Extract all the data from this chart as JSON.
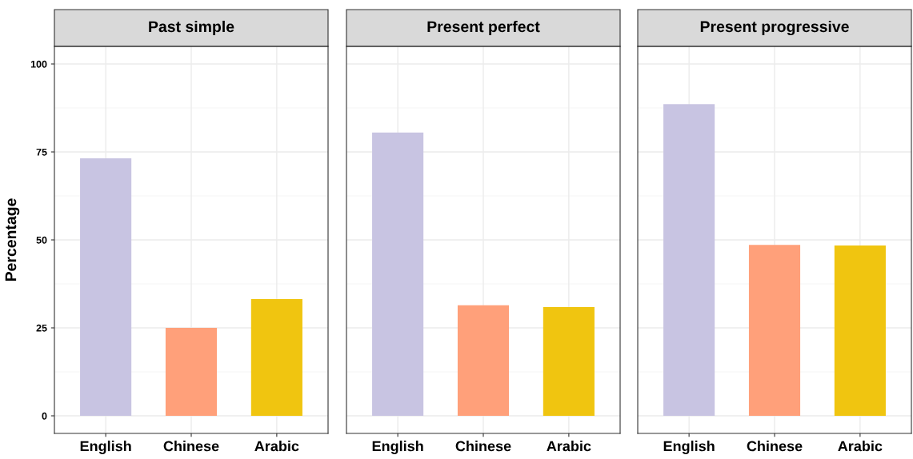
{
  "chart_data": [
    {
      "type": "bar",
      "title": "Past simple",
      "ylabel": "Percentage",
      "categories": [
        "English",
        "Chinese",
        "Arabic"
      ],
      "values": [
        73.2,
        25.0,
        33.2
      ],
      "colors": [
        "#c8c4e2",
        "#ffa07a",
        "#f0c510"
      ],
      "ylim": [
        -5,
        105
      ],
      "yticks": [
        0,
        25,
        50,
        75,
        100
      ],
      "grid": true
    },
    {
      "type": "bar",
      "title": "Present perfect",
      "categories": [
        "English",
        "Chinese",
        "Arabic"
      ],
      "values": [
        80.5,
        31.4,
        30.9
      ],
      "colors": [
        "#c8c4e2",
        "#ffa07a",
        "#f0c510"
      ],
      "ylim": [
        -5,
        105
      ],
      "yticks": [
        0,
        25,
        50,
        75,
        100
      ],
      "grid": true,
      "tick_labels": "x"
    },
    {
      "type": "bar",
      "title": "Present progressive",
      "categories": [
        "English",
        "Chinese",
        "Arabic"
      ],
      "values": [
        88.6,
        48.6,
        48.4
      ],
      "colors": [
        "#c8c4e2",
        "#ffa07a",
        "#f0c510"
      ],
      "ylim": [
        -5,
        105
      ],
      "yticks": [
        0,
        25,
        50,
        75,
        100
      ],
      "grid": true,
      "tick_labels": "x"
    }
  ]
}
